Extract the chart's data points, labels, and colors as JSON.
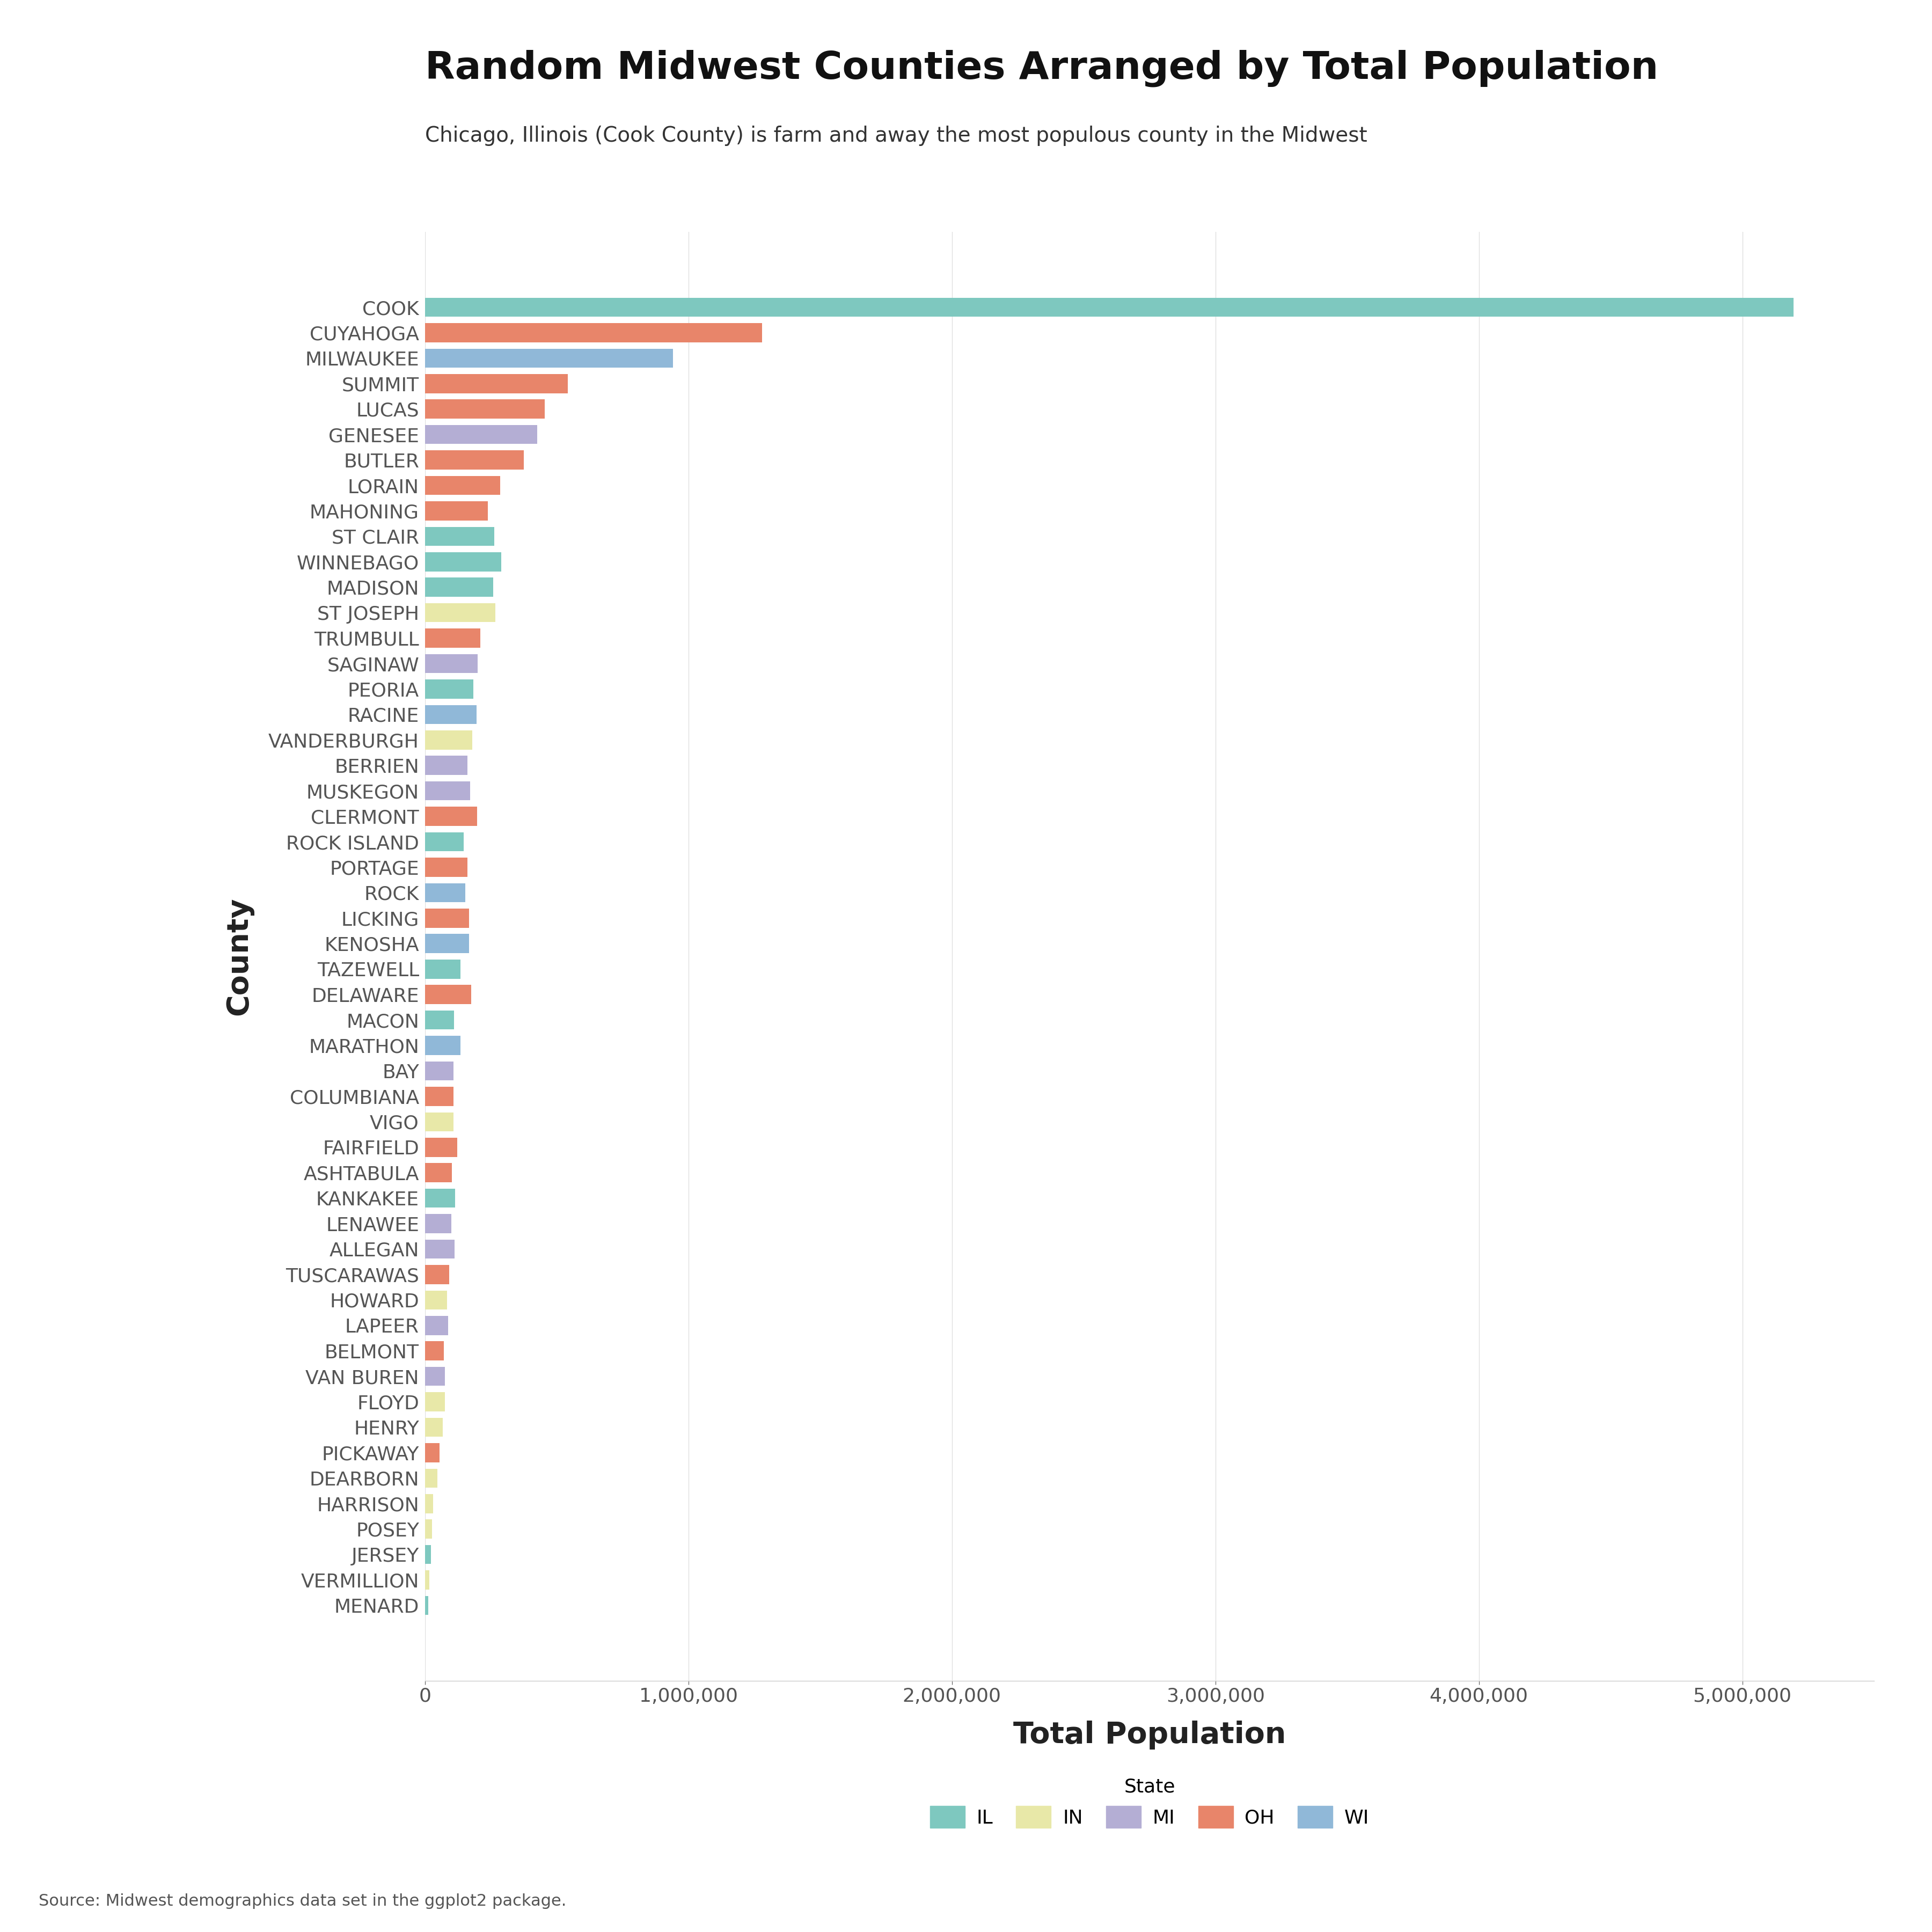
{
  "title": "Random Midwest Counties Arranged by Total Population",
  "subtitle": "Chicago, Illinois (Cook County) is farm and away the most populous county in the Midwest",
  "xlabel": "Total Population",
  "ylabel": "County",
  "footnote": "Source: Midwest demographics data set in the ggplot2 package.",
  "counties": [
    "MENARD",
    "VERMILLION",
    "JERSEY",
    "POSEY",
    "HARRISON",
    "DEARBORN",
    "PICKAWAY",
    "HENRY",
    "FLOYD",
    "VAN BUREN",
    "BELMONT",
    "LAPEER",
    "HOWARD",
    "TUSCARAWAS",
    "ALLEGAN",
    "LENAWEE",
    "KANKAKEE",
    "ASHTABULA",
    "FAIRFIELD",
    "VIGO",
    "COLUMBIANA",
    "BAY",
    "MARATHON",
    "MACON",
    "DELAWARE",
    "TAZEWELL",
    "KENOSHA",
    "LICKING",
    "ROCK",
    "PORTAGE",
    "ROCK ISLAND",
    "CLERMONT",
    "MUSKEGON",
    "BERRIEN",
    "VANDERBURGH",
    "RACINE",
    "PEORIA",
    "SAGINAW",
    "TRUMBULL",
    "ST JOSEPH",
    "MADISON",
    "WINNEBAGO",
    "ST CLAIR",
    "MAHONING",
    "LORAIN",
    "BUTLER",
    "GENESEE",
    "LUCAS",
    "SUMMIT",
    "MILWAUKEE",
    "CUYAHOGA",
    "COOK"
  ],
  "populations": [
    12705,
    16212,
    22985,
    25910,
    29735,
    46109,
    55698,
    67598,
    74578,
    76258,
    70400,
    88194,
    82927,
    92582,
    111408,
    99892,
    113449,
    101497,
    122759,
    108616,
    107841,
    107771,
    134063,
    110268,
    174214,
    135394,
    166426,
    166492,
    152307,
    161419,
    147546,
    197363,
    170200,
    160472,
    179703,
    195408,
    183433,
    200169,
    210312,
    266931,
    258400,
    289251,
    262852,
    238823,
    284664,
    374374,
    425790,
    455054,
    541781,
    940164,
    1280122,
    5194675
  ],
  "states": [
    "IL",
    "IN",
    "IL",
    "IN",
    "IN",
    "IN",
    "OH",
    "IN",
    "IN",
    "MI",
    "OH",
    "MI",
    "IN",
    "OH",
    "MI",
    "MI",
    "IL",
    "OH",
    "OH",
    "IN",
    "OH",
    "MI",
    "WI",
    "IL",
    "OH",
    "IL",
    "WI",
    "OH",
    "WI",
    "OH",
    "IL",
    "OH",
    "MI",
    "MI",
    "IN",
    "WI",
    "IL",
    "MI",
    "OH",
    "IN",
    "IL",
    "IL",
    "IL",
    "OH",
    "OH",
    "OH",
    "MI",
    "OH",
    "OH",
    "WI",
    "OH",
    "IL"
  ],
  "state_colors": {
    "IL": "#7ec8bf",
    "IN": "#e8e8a8",
    "MI": "#b4aed4",
    "OH": "#e8856a",
    "WI": "#90b8d8"
  },
  "legend_states": [
    "IL",
    "IN",
    "MI",
    "OH",
    "WI"
  ],
  "legend_colors": [
    "#7ec8bf",
    "#e8e8a8",
    "#b4aed4",
    "#e8856a",
    "#90b8d8"
  ],
  "background_color": "#ffffff",
  "bar_height": 0.75,
  "xlim": [
    0,
    5500000
  ],
  "title_fontsize": 52,
  "subtitle_fontsize": 28,
  "axis_label_fontsize": 40,
  "tick_fontsize": 26,
  "footnote_fontsize": 22,
  "legend_fontsize": 26,
  "ylabel_fontsize": 40
}
